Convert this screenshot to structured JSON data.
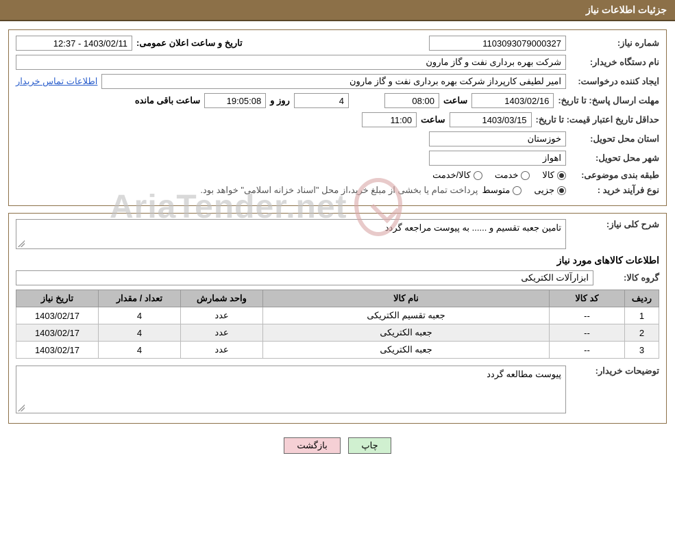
{
  "header": {
    "title": "جزئیات اطلاعات نیاز"
  },
  "fields": {
    "need_no_label": "شماره نیاز:",
    "need_no": "1103093079000327",
    "announce_label": "تاریخ و ساعت اعلان عمومی:",
    "announce_value": "1403/02/11 - 12:37",
    "buyer_org_label": "نام دستگاه خریدار:",
    "buyer_org": "شرکت بهره برداری نفت و گاز مارون",
    "requester_label": "ایجاد کننده درخواست:",
    "requester": "امیر لطیفی کارپرداز شرکت بهره برداری نفت و گاز مارون",
    "contact_link": "اطلاعات تماس خریدار",
    "deadline_label": "مهلت ارسال پاسخ:",
    "until_date_label": "تا تاریخ:",
    "deadline_date": "1403/02/16",
    "hour_label": "ساعت",
    "deadline_hour": "08:00",
    "days_label": "روز و",
    "days_value": "4",
    "remain_label": "ساعت باقی مانده",
    "remain_value": "19:05:08",
    "validity_label": "حداقل تاریخ اعتبار قیمت:",
    "validity_date": "1403/03/15",
    "validity_hour": "11:00",
    "province_label": "استان محل تحویل:",
    "province": "خوزستان",
    "city_label": "شهر محل تحویل:",
    "city": "اهواز",
    "category_label": "طبقه بندی موضوعی:",
    "cat_goods": "کالا",
    "cat_service": "خدمت",
    "cat_goods_service": "کالا/خدمت",
    "purchase_type_label": "نوع فرآیند خرید :",
    "pt_partial": "جزیی",
    "pt_medium": "متوسط",
    "payment_note": "پرداخت تمام یا بخشی از مبلغ خرید،از محل \"اسناد خزانه اسلامی\" خواهد بود.",
    "need_desc_label": "شرح کلی نیاز:",
    "need_desc": "تامین جعبه تقسیم و ...... به پیوست مراجعه گردد",
    "goods_section": "اطلاعات کالاهای مورد نیاز",
    "group_label": "گروه کالا:",
    "group": "ابزارآلات الکتریکی",
    "buyer_note_label": "توضیحات خریدار:",
    "buyer_note": "پیوست مطالعه گردد"
  },
  "table": {
    "columns": [
      "ردیف",
      "کد کالا",
      "نام کالا",
      "واحد شمارش",
      "تعداد / مقدار",
      "تاریخ نیاز"
    ],
    "rows": [
      [
        "1",
        "--",
        "جعبه تقسیم الکتریکی",
        "عدد",
        "4",
        "1403/02/17"
      ],
      [
        "2",
        "--",
        "جعبه الکتریکی",
        "عدد",
        "4",
        "1403/02/17"
      ],
      [
        "3",
        "--",
        "جعبه الکتریکی",
        "عدد",
        "4",
        "1403/02/17"
      ]
    ],
    "col_widths": [
      "50px",
      "110px",
      "auto",
      "120px",
      "120px",
      "120px"
    ]
  },
  "buttons": {
    "print": "چاپ",
    "back": "بازگشت"
  },
  "watermark": "AriaTender.net",
  "style": {
    "header_bg": "#8c7048",
    "border_color": "#8c7048",
    "th_bg": "#c0c0c0",
    "row_alt_bg": "#eeeeee",
    "link_color": "#2a5ecc",
    "btn_print_bg": "#d0f0d0",
    "btn_back_bg": "#f5d0d5"
  }
}
